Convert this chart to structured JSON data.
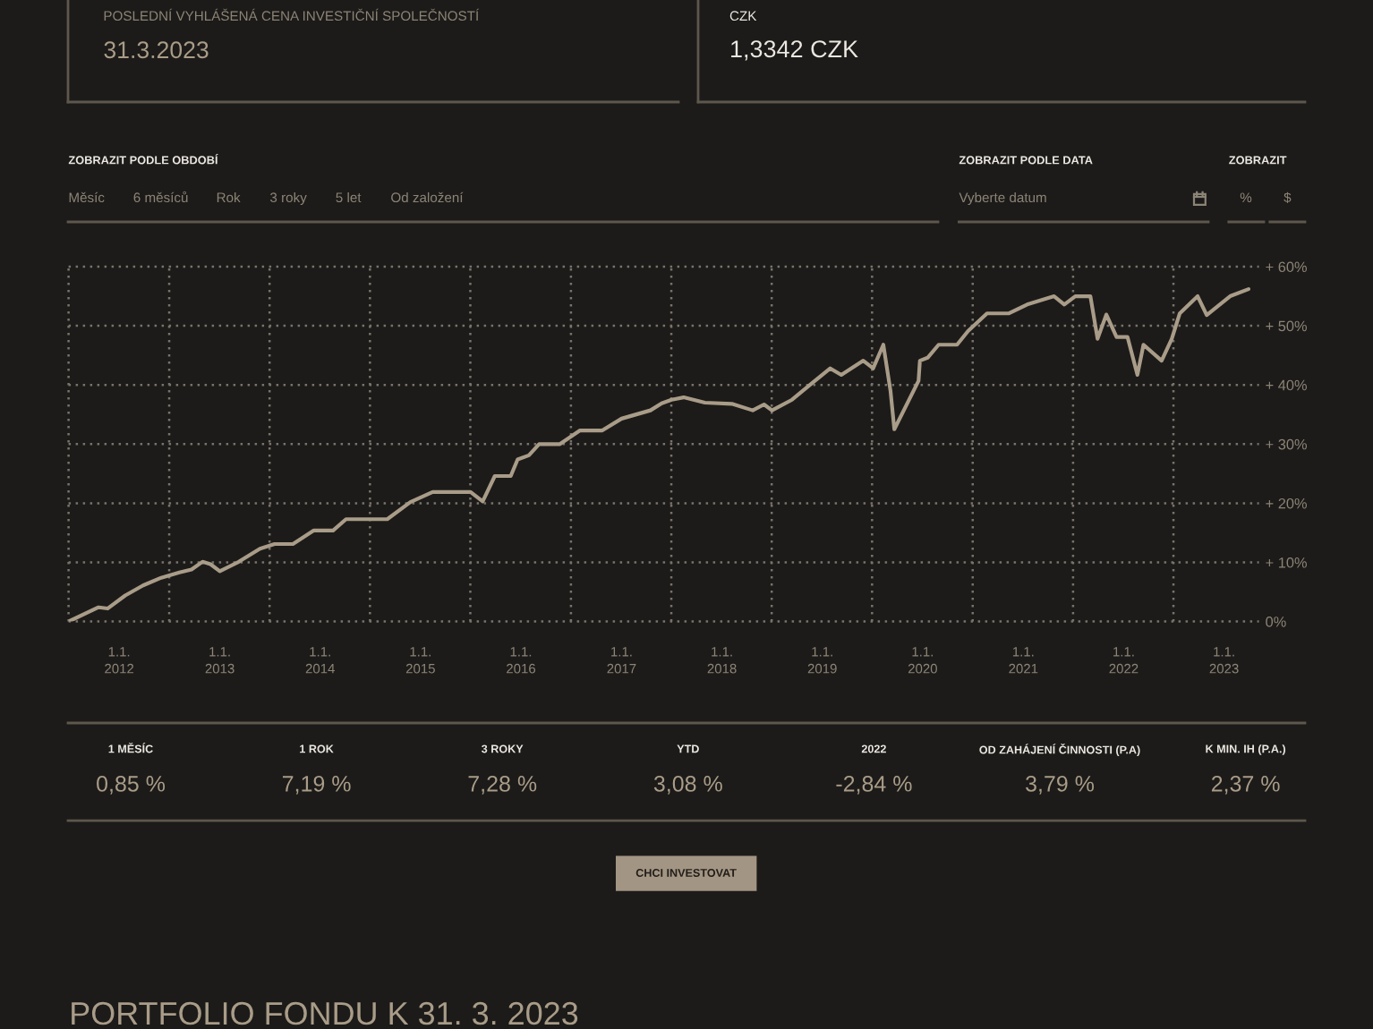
{
  "chart_data": [
    {
      "type": "other",
      "annotations": [
        "POSLEDNÍ VYHLÁŠENÁ CENA INVESTIČNÍ SPOLEČNOSTÍ",
        "31.3.2023",
        "CZK",
        "1,3342 CZK"
      ]
    },
    {
      "type": "other",
      "annotations": [
        "ZOBRAZIT PODLE OBDOBÍ",
        "Měsíc",
        "6 měsíců",
        "Rok",
        "3 roky",
        "5 let",
        "Od založení",
        "ZOBRAZIT PODLE DATA",
        "Vyberte datum",
        "ZOBRAZIT",
        "%",
        "$"
      ]
    },
    {
      "type": "line",
      "color": "#a99c88",
      "x": [
        "2011-07-01",
        "2011-10-18",
        "2011-11-20",
        "2012-01-23",
        "2012-03-28",
        "2012-06-02",
        "2012-08-07",
        "2012-09-20",
        "2012-10-30",
        "2012-11-28",
        "2013-01-01",
        "2013-03-11",
        "2013-05-27",
        "2013-07-19",
        "2013-09-24",
        "2013-12-09",
        "2014-02-17",
        "2014-04-05",
        "2014-09-02",
        "2014-11-25",
        "2015-02-14",
        "2015-07-02",
        "2015-08-15",
        "2015-09-28",
        "2015-11-25",
        "2015-12-20",
        "2016-01-30",
        "2016-03-07",
        "2016-05-22",
        "2016-08-03",
        "2016-10-23",
        "2017-01-01",
        "2017-04-16",
        "2017-05-27",
        "2017-07-02",
        "2017-08-15",
        "2017-10-31",
        "2018-02-06",
        "2018-04-23",
        "2018-06-03",
        "2018-07-02",
        "2018-09-13",
        "2018-11-25",
        "2019-01-30",
        "2019-03-11",
        "2019-05-30",
        "2019-07-05",
        "2019-08-11",
        "2019-09-06",
        "2019-09-20",
        "2019-12-17",
        "2019-12-22",
        "2020-01-19",
        "2020-02-28",
        "2020-05-05",
        "2020-06-14",
        "2020-08-22",
        "2020-11-10",
        "2021-01-15",
        "2021-04-23",
        "2021-05-30",
        "2021-07-09",
        "2021-09-02",
        "2021-09-28",
        "2021-10-30",
        "2021-12-06",
        "2022-01-15",
        "2022-02-20",
        "2022-03-14",
        "2022-05-19",
        "2022-06-25",
        "2022-07-24",
        "2022-09-27",
        "2022-10-30",
        "2023-01-23",
        "2023-03-31"
      ],
      "values": [
        0,
        2.4,
        2.2,
        4.4,
        6.1,
        7.4,
        8.3,
        8.8,
        10.1,
        9.7,
        8.5,
        10.1,
        12.3,
        13.1,
        13.1,
        15.4,
        15.4,
        17.3,
        17.3,
        20.2,
        21.9,
        21.9,
        20.3,
        24.6,
        24.6,
        27.4,
        28.1,
        30.0,
        30.0,
        32.3,
        32.3,
        34.3,
        35.7,
        36.9,
        37.5,
        37.9,
        37.0,
        36.8,
        35.7,
        36.7,
        35.7,
        37.5,
        40.3,
        42.8,
        41.7,
        44.1,
        42.8,
        46.8,
        39.0,
        32.5,
        40.7,
        44.1,
        44.6,
        46.8,
        46.8,
        49.1,
        52.1,
        52.1,
        53.6,
        55.0,
        53.6,
        55.0,
        55.0,
        47.8,
        51.9,
        48.1,
        48.1,
        41.7,
        46.8,
        44.1,
        47.8,
        52.1,
        55.0,
        51.8,
        55.0,
        56.2
      ],
      "xlim": [
        "2011-07-01",
        "2023-05-08"
      ],
      "xticks": [
        {
          "value": "2011-07-01",
          "label": null
        },
        {
          "value": "2012-01-01",
          "label": "1.1.\n2012"
        },
        {
          "value": "2012-07-01",
          "label": null
        },
        {
          "value": "2013-01-01",
          "label": "1.1.\n2013"
        },
        {
          "value": "2013-07-01",
          "label": null
        },
        {
          "value": "2014-01-01",
          "label": "1.1.\n2014"
        },
        {
          "value": "2014-07-01",
          "label": null
        },
        {
          "value": "2015-01-01",
          "label": "1.1.\n2015"
        },
        {
          "value": "2015-07-01",
          "label": null
        },
        {
          "value": "2016-01-01",
          "label": "1.1.\n2016"
        },
        {
          "value": "2016-07-01",
          "label": null
        },
        {
          "value": "2017-01-01",
          "label": "1.1.\n2017"
        },
        {
          "value": "2017-07-01",
          "label": null
        },
        {
          "value": "2018-01-01",
          "label": "1.1.\n2018"
        },
        {
          "value": "2018-07-01",
          "label": null
        },
        {
          "value": "2019-01-01",
          "label": "1.1.\n2019"
        },
        {
          "value": "2019-07-01",
          "label": null
        },
        {
          "value": "2020-01-01",
          "label": "1.1.\n2020"
        },
        {
          "value": "2020-07-01",
          "label": null
        },
        {
          "value": "2021-01-01",
          "label": "1.1.\n2021"
        },
        {
          "value": "2021-07-01",
          "label": null
        },
        {
          "value": "2022-01-01",
          "label": "1.1.\n2022"
        },
        {
          "value": "2022-07-01",
          "label": null
        },
        {
          "value": "2023-01-01",
          "label": "1.1.\n2023"
        }
      ],
      "ylim": [
        0,
        60
      ],
      "yticks": [
        {
          "value": 0,
          "label": "0%"
        },
        {
          "value": 10,
          "label": "+ 10%"
        },
        {
          "value": 20,
          "label": "+ 20%"
        },
        {
          "value": 30,
          "label": "+ 30%"
        },
        {
          "value": 40,
          "label": "+ 40%"
        },
        {
          "value": 50,
          "label": "+ 50%"
        },
        {
          "value": 60,
          "label": "+ 60%"
        }
      ],
      "grid": true
    },
    {
      "type": "other",
      "annotations": [
        "1 MĚSÍC",
        "0,85 %",
        "1 ROK",
        "7,19 %",
        "3 ROKY",
        "7,28 %",
        "YTD",
        "3,08 %",
        "2022",
        "-2,84 %",
        "OD ZAHÁJENÍ ČINNOSTI (P.A)",
        "3,79 %",
        "K MIN. IH (P.A.)",
        "2,37 %"
      ]
    },
    {
      "type": "other",
      "annotations": [
        "CHCI INVESTOVAT",
        "PORTFOLIO FONDU K 31. 3. 2023"
      ]
    }
  ]
}
